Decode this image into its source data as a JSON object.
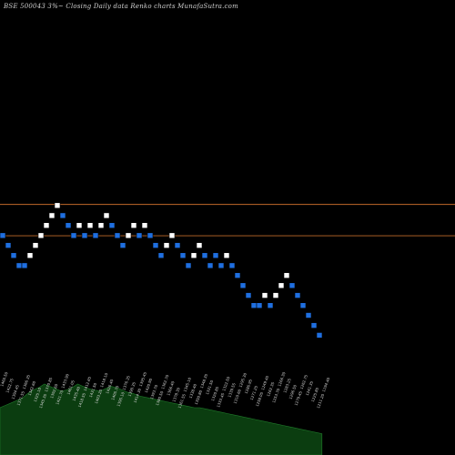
{
  "chart_data": {
    "type": "renko",
    "title": "BSE 500043 3%~  Closing Daily data  Renko  charts MunafaSutra.com",
    "colors": {
      "background": "#000000",
      "up_brick": "#ffffff",
      "down_brick": "#1f6fe0",
      "reference_line": "#c06a2a",
      "volume_area": "#0b3d10",
      "volume_line": "#1f7a2a"
    },
    "reference_lines": [
      {
        "name": "upper",
        "value": 1500
      },
      {
        "name": "lower",
        "value": 1382
      }
    ],
    "brick_size_percent": 3,
    "ylim": [
      900,
      2200
    ],
    "bricks": [
      {
        "level": 1383,
        "dir": "down"
      },
      {
        "level": 1346,
        "dir": "down"
      },
      {
        "level": 1308,
        "dir": "down"
      },
      {
        "level": 1270,
        "dir": "down"
      },
      {
        "level": 1270,
        "dir": "down"
      },
      {
        "level": 1308,
        "dir": "up"
      },
      {
        "level": 1346,
        "dir": "up"
      },
      {
        "level": 1383,
        "dir": "up"
      },
      {
        "level": 1421,
        "dir": "up"
      },
      {
        "level": 1458,
        "dir": "up"
      },
      {
        "level": 1496,
        "dir": "up"
      },
      {
        "level": 1458,
        "dir": "down"
      },
      {
        "level": 1421,
        "dir": "down"
      },
      {
        "level": 1383,
        "dir": "down"
      },
      {
        "level": 1421,
        "dir": "up"
      },
      {
        "level": 1383,
        "dir": "down"
      },
      {
        "level": 1421,
        "dir": "up"
      },
      {
        "level": 1383,
        "dir": "down"
      },
      {
        "level": 1421,
        "dir": "up"
      },
      {
        "level": 1458,
        "dir": "up"
      },
      {
        "level": 1421,
        "dir": "down"
      },
      {
        "level": 1383,
        "dir": "down"
      },
      {
        "level": 1346,
        "dir": "down"
      },
      {
        "level": 1383,
        "dir": "up"
      },
      {
        "level": 1421,
        "dir": "up"
      },
      {
        "level": 1383,
        "dir": "down"
      },
      {
        "level": 1421,
        "dir": "up"
      },
      {
        "level": 1383,
        "dir": "down"
      },
      {
        "level": 1346,
        "dir": "down"
      },
      {
        "level": 1308,
        "dir": "down"
      },
      {
        "level": 1346,
        "dir": "up"
      },
      {
        "level": 1383,
        "dir": "up"
      },
      {
        "level": 1346,
        "dir": "down"
      },
      {
        "level": 1308,
        "dir": "down"
      },
      {
        "level": 1270,
        "dir": "down"
      },
      {
        "level": 1308,
        "dir": "up"
      },
      {
        "level": 1346,
        "dir": "up"
      },
      {
        "level": 1308,
        "dir": "down"
      },
      {
        "level": 1270,
        "dir": "down"
      },
      {
        "level": 1308,
        "dir": "down"
      },
      {
        "level": 1270,
        "dir": "down"
      },
      {
        "level": 1308,
        "dir": "up"
      },
      {
        "level": 1270,
        "dir": "down"
      },
      {
        "level": 1233,
        "dir": "down"
      },
      {
        "level": 1195,
        "dir": "down"
      },
      {
        "level": 1158,
        "dir": "down"
      },
      {
        "level": 1120,
        "dir": "down"
      },
      {
        "level": 1120,
        "dir": "down"
      },
      {
        "level": 1158,
        "dir": "up"
      },
      {
        "level": 1120,
        "dir": "down"
      },
      {
        "level": 1158,
        "dir": "up"
      },
      {
        "level": 1195,
        "dir": "up"
      },
      {
        "level": 1233,
        "dir": "up"
      },
      {
        "level": 1195,
        "dir": "down"
      },
      {
        "level": 1158,
        "dir": "down"
      },
      {
        "level": 1120,
        "dir": "down"
      },
      {
        "level": 1083,
        "dir": "down"
      },
      {
        "level": 1045,
        "dir": "down"
      },
      {
        "level": 1008,
        "dir": "down"
      }
    ],
    "volume": [
      40,
      42,
      44,
      46,
      48,
      52,
      55,
      57,
      60,
      58,
      56,
      54,
      55,
      57,
      60,
      58,
      56,
      55,
      54,
      56,
      58,
      57,
      55,
      53,
      52,
      50,
      49,
      48,
      47,
      46,
      45,
      44,
      43,
      42,
      41,
      40,
      40,
      39,
      38,
      37,
      36,
      35,
      34,
      33,
      32,
      31,
      30,
      29,
      28,
      27,
      26,
      25,
      24,
      23,
      22,
      21,
      20,
      19,
      18
    ],
    "x_tick_labels": [
      "1460.50",
      "1422.75",
      "1394.45",
      "1371.55",
      "1366.35",
      "1342.60",
      "1325.10",
      "1345.35",
      "1370.85",
      "1392.60",
      "1421.70",
      "1433.90",
      "1461.05",
      "1435.40",
      "1418.55",
      "1412.65",
      "1431.50",
      "1403.20",
      "1418.10",
      "1426.40",
      "1405.70",
      "1395.10",
      "1376.35",
      "1390.35",
      "1414.30",
      "1395.45",
      "1420.90",
      "1393.70",
      "1380.50",
      "1362.70",
      "1366.40",
      "1378.30",
      "1361.55",
      "1345.10",
      "1338.40",
      "1350.80",
      "1348.35",
      "1331.50",
      "1320.85",
      "1333.45",
      "1322.50",
      "1339.55",
      "1310.60",
      "1295.30",
      "1286.95",
      "1271.25",
      "1258.05",
      "1249.45",
      "1262.35",
      "1253.70",
      "1266.30",
      "1283.25",
      "1296.50",
      "1279.45",
      "1262.75",
      "1241.35",
      "1225.85",
      "1211.20",
      "1194.40"
    ]
  }
}
